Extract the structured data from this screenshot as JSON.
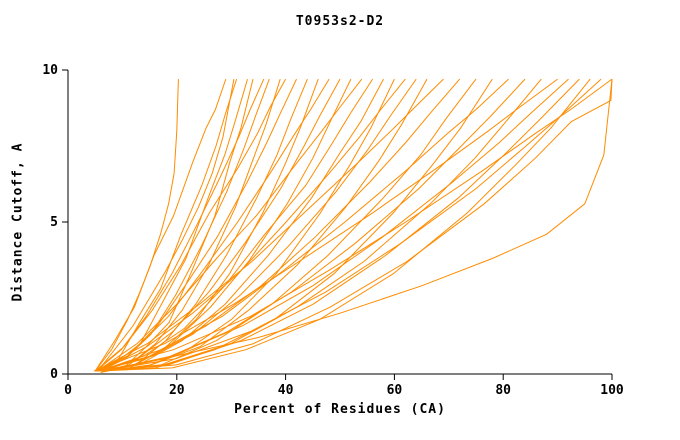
{
  "chart_data": {
    "type": "line",
    "title": "T0953s2-D2",
    "xlabel": "Percent of Residues (CA)",
    "ylabel": "Distance Cutoff, A",
    "xlim": [
      0,
      100
    ],
    "ylim": [
      0,
      10
    ],
    "xticks": [
      0,
      20,
      40,
      60,
      80,
      100
    ],
    "yticks": [
      0,
      5,
      10
    ],
    "grid": false,
    "legend": "none",
    "line_color": "#ff8c00",
    "axis_color": "#000000",
    "curves": [
      [
        [
          5.0,
          0.1
        ],
        [
          8.0,
          0.8
        ],
        [
          11.0,
          1.8
        ],
        [
          13.0,
          2.6
        ],
        [
          15.0,
          3.5
        ],
        [
          17.0,
          4.6
        ],
        [
          18.5,
          5.6
        ],
        [
          19.5,
          6.6
        ],
        [
          20.0,
          8.0
        ],
        [
          20.3,
          9.7
        ]
      ],
      [
        [
          5.0,
          0.1
        ],
        [
          8.6,
          1.1
        ],
        [
          12.2,
          2.2
        ],
        [
          15.8,
          3.9
        ],
        [
          19.4,
          5.2
        ],
        [
          23.0,
          7.0
        ],
        [
          25.4,
          8.1
        ],
        [
          27.1,
          8.7
        ],
        [
          29.0,
          9.7
        ]
      ],
      [
        [
          5.5,
          0.1
        ],
        [
          9.3,
          0.5
        ],
        [
          13.2,
          1.7
        ],
        [
          17.0,
          2.8
        ],
        [
          20.8,
          4.6
        ],
        [
          24.6,
          6.2
        ],
        [
          27.2,
          7.5
        ],
        [
          29.0,
          8.6
        ],
        [
          31.0,
          9.7
        ]
      ],
      [
        [
          4.8,
          0.1
        ],
        [
          9.0,
          0.4
        ],
        [
          13.3,
          1.0
        ],
        [
          17.5,
          2.4
        ],
        [
          21.7,
          3.8
        ],
        [
          26.0,
          5.9
        ],
        [
          28.8,
          7.2
        ],
        [
          30.7,
          8.3
        ],
        [
          33.0,
          9.7
        ]
      ],
      [
        [
          6.0,
          0.1
        ],
        [
          10.2,
          0.2
        ],
        [
          14.4,
          0.9
        ],
        [
          18.6,
          1.7
        ],
        [
          22.8,
          3.4
        ],
        [
          27.0,
          5.2
        ],
        [
          29.8,
          7.0
        ],
        [
          31.8,
          8.1
        ],
        [
          34.0,
          9.7
        ]
      ],
      [
        [
          5.5,
          0.1
        ],
        [
          9.0,
          0.9
        ],
        [
          12.0,
          1.6
        ],
        [
          15.0,
          2.5
        ],
        [
          18.0,
          3.4
        ],
        [
          21.0,
          4.4
        ],
        [
          24.0,
          5.5
        ],
        [
          26.5,
          6.6
        ],
        [
          28.5,
          7.8
        ],
        [
          30.5,
          9.7
        ]
      ],
      [
        [
          5.2,
          0.1
        ],
        [
          9.8,
          0.8
        ],
        [
          14.4,
          1.9
        ],
        [
          19.1,
          3.3
        ],
        [
          23.7,
          4.9
        ],
        [
          28.3,
          6.6
        ],
        [
          31.4,
          7.8
        ],
        [
          33.5,
          8.7
        ],
        [
          36.0,
          9.7
        ]
      ],
      [
        [
          5.8,
          0.1
        ],
        [
          10.5,
          0.5
        ],
        [
          15.2,
          1.3
        ],
        [
          19.8,
          2.6
        ],
        [
          24.5,
          4.2
        ],
        [
          29.2,
          6.0
        ],
        [
          32.3,
          7.4
        ],
        [
          34.5,
          8.5
        ],
        [
          37.0,
          9.7
        ]
      ],
      [
        [
          6.3,
          0.1
        ],
        [
          11.2,
          0.3
        ],
        [
          16.1,
          1.0
        ],
        [
          21.0,
          2.1
        ],
        [
          25.9,
          3.6
        ],
        [
          30.8,
          5.5
        ],
        [
          34.1,
          7.1
        ],
        [
          36.4,
          8.2
        ],
        [
          39.0,
          9.7
        ]
      ],
      [
        [
          5.0,
          0.1
        ],
        [
          10.3,
          0.9
        ],
        [
          15.5,
          2.1
        ],
        [
          20.8,
          3.6
        ],
        [
          26.0,
          5.3
        ],
        [
          31.3,
          6.8
        ],
        [
          34.8,
          7.9
        ],
        [
          37.2,
          8.8
        ],
        [
          40.0,
          9.7
        ]
      ],
      [
        [
          5.5,
          0.1
        ],
        [
          11.0,
          0.6
        ],
        [
          16.5,
          1.6
        ],
        [
          21.9,
          3.0
        ],
        [
          27.4,
          4.5
        ],
        [
          32.9,
          6.3
        ],
        [
          36.5,
          7.6
        ],
        [
          39.1,
          8.6
        ],
        [
          42.0,
          9.7
        ]
      ],
      [
        [
          6.8,
          0.1
        ],
        [
          12.4,
          0.3
        ],
        [
          18.0,
          1.1
        ],
        [
          23.5,
          2.3
        ],
        [
          29.1,
          3.9
        ],
        [
          34.7,
          5.8
        ],
        [
          38.4,
          7.2
        ],
        [
          41.0,
          8.4
        ],
        [
          44.0,
          9.7
        ]
      ],
      [
        [
          5.2,
          0.1
        ],
        [
          11.3,
          0.2
        ],
        [
          17.4,
          0.8
        ],
        [
          23.6,
          1.8
        ],
        [
          29.7,
          3.3
        ],
        [
          35.8,
          5.3
        ],
        [
          39.9,
          6.9
        ],
        [
          42.7,
          8.1
        ],
        [
          46.0,
          9.7
        ]
      ],
      [
        [
          5.9,
          0.1
        ],
        [
          12.2,
          0.8
        ],
        [
          18.5,
          1.9
        ],
        [
          24.8,
          3.4
        ],
        [
          31.2,
          5.0
        ],
        [
          37.5,
          6.7
        ],
        [
          41.7,
          7.9
        ],
        [
          44.6,
          8.7
        ],
        [
          48.0,
          9.7
        ]
      ],
      [
        [
          6.2,
          0.1
        ],
        [
          12.8,
          0.5
        ],
        [
          19.3,
          1.4
        ],
        [
          25.9,
          2.7
        ],
        [
          32.5,
          4.3
        ],
        [
          39.1,
          6.1
        ],
        [
          43.4,
          7.5
        ],
        [
          46.3,
          8.5
        ],
        [
          50.0,
          9.7
        ]
      ],
      [
        [
          5.0,
          0.1
        ],
        [
          12.1,
          0.3
        ],
        [
          19.1,
          1.0
        ],
        [
          26.2,
          2.2
        ],
        [
          33.2,
          3.7
        ],
        [
          40.3,
          5.6
        ],
        [
          45.0,
          7.1
        ],
        [
          48.2,
          8.3
        ],
        [
          52.0,
          9.7
        ]
      ],
      [
        [
          5.4,
          0.1
        ],
        [
          12.7,
          1.0
        ],
        [
          20.0,
          2.3
        ],
        [
          27.3,
          3.8
        ],
        [
          34.6,
          5.2
        ],
        [
          41.9,
          6.9
        ],
        [
          46.7,
          8.0
        ],
        [
          50.1,
          8.8
        ],
        [
          54.0,
          9.7
        ]
      ],
      [
        [
          6.6,
          0.1
        ],
        [
          14.0,
          0.6
        ],
        [
          21.4,
          1.5
        ],
        [
          28.8,
          2.9
        ],
        [
          36.2,
          4.6
        ],
        [
          43.7,
          6.2
        ],
        [
          48.6,
          7.6
        ],
        [
          52.0,
          8.6
        ],
        [
          56.0,
          9.7
        ]
      ],
      [
        [
          5.1,
          0.1
        ],
        [
          13.0,
          0.3
        ],
        [
          21.0,
          1.1
        ],
        [
          28.9,
          2.3
        ],
        [
          36.8,
          3.9
        ],
        [
          44.8,
          5.8
        ],
        [
          50.1,
          7.3
        ],
        [
          53.8,
          8.3
        ],
        [
          58.0,
          9.7
        ]
      ],
      [
        [
          5.7,
          0.1
        ],
        [
          13.8,
          0.2
        ],
        [
          22.0,
          0.8
        ],
        [
          30.1,
          1.8
        ],
        [
          38.3,
          3.3
        ],
        [
          46.4,
          5.3
        ],
        [
          51.9,
          6.9
        ],
        [
          55.7,
          8.1
        ],
        [
          60.0,
          9.7
        ]
      ],
      [
        [
          6.1,
          0.1
        ],
        [
          14.5,
          0.9
        ],
        [
          22.9,
          2.0
        ],
        [
          31.3,
          3.3
        ],
        [
          39.6,
          4.9
        ],
        [
          48.0,
          6.6
        ],
        [
          53.6,
          7.8
        ],
        [
          57.5,
          8.7
        ],
        [
          62.0,
          9.7
        ]
      ],
      [
        [
          5.3,
          0.1
        ],
        [
          14.1,
          0.5
        ],
        [
          22.9,
          1.3
        ],
        [
          31.7,
          2.6
        ],
        [
          40.5,
          4.2
        ],
        [
          49.3,
          6.0
        ],
        [
          55.2,
          7.4
        ],
        [
          59.3,
          8.5
        ],
        [
          64.0,
          9.7
        ]
      ],
      [
        [
          6.4,
          0.1
        ],
        [
          15.3,
          0.3
        ],
        [
          24.3,
          0.9
        ],
        [
          33.2,
          2.1
        ],
        [
          42.2,
          3.6
        ],
        [
          51.1,
          5.5
        ],
        [
          57.1,
          7.0
        ],
        [
          61.3,
          8.2
        ],
        [
          66.0,
          9.7
        ]
      ],
      [
        [
          5.0,
          0.1
        ],
        [
          14.6,
          1.0
        ],
        [
          24.2,
          2.3
        ],
        [
          33.8,
          3.7
        ],
        [
          43.4,
          5.3
        ],
        [
          53.0,
          6.9
        ],
        [
          59.4,
          8.0
        ],
        [
          63.9,
          8.8
        ],
        [
          69.0,
          9.7
        ]
      ],
      [
        [
          5.6,
          0.1
        ],
        [
          15.6,
          0.6
        ],
        [
          25.5,
          1.6
        ],
        [
          35.5,
          2.9
        ],
        [
          45.4,
          4.5
        ],
        [
          55.4,
          6.3
        ],
        [
          62.0,
          7.6
        ],
        [
          66.7,
          8.6
        ],
        [
          72.0,
          9.7
        ]
      ],
      [
        [
          6.9,
          0.1
        ],
        [
          17.1,
          0.3
        ],
        [
          27.3,
          1.1
        ],
        [
          37.5,
          2.3
        ],
        [
          47.8,
          3.9
        ],
        [
          58.0,
          5.8
        ],
        [
          64.8,
          7.2
        ],
        [
          69.5,
          8.4
        ],
        [
          75.0,
          9.7
        ]
      ],
      [
        [
          5.2,
          0.1
        ],
        [
          16.1,
          0.2
        ],
        [
          27.0,
          0.8
        ],
        [
          38.0,
          1.8
        ],
        [
          48.9,
          3.3
        ],
        [
          59.8,
          5.3
        ],
        [
          67.1,
          6.9
        ],
        [
          72.2,
          8.1
        ],
        [
          78.0,
          9.7
        ]
      ],
      [
        [
          5.8,
          0.1
        ],
        [
          17.1,
          0.8
        ],
        [
          28.4,
          1.9
        ],
        [
          39.6,
          3.4
        ],
        [
          50.9,
          5.0
        ],
        [
          62.2,
          6.7
        ],
        [
          69.7,
          7.9
        ],
        [
          75.0,
          8.7
        ],
        [
          81.0,
          9.7
        ]
      ],
      [
        [
          6.0,
          0.1
        ],
        [
          17.7,
          0.5
        ],
        [
          29.4,
          1.4
        ],
        [
          41.1,
          2.7
        ],
        [
          52.8,
          4.3
        ],
        [
          64.5,
          6.1
        ],
        [
          72.3,
          7.5
        ],
        [
          77.8,
          8.5
        ],
        [
          84.0,
          9.7
        ]
      ],
      [
        [
          5.4,
          0.1
        ],
        [
          17.6,
          0.3
        ],
        [
          29.9,
          1.0
        ],
        [
          42.1,
          2.2
        ],
        [
          54.4,
          3.7
        ],
        [
          66.6,
          5.6
        ],
        [
          74.8,
          7.1
        ],
        [
          80.5,
          8.3
        ],
        [
          87.0,
          9.7
        ]
      ],
      [
        [
          5.0,
          0.1
        ],
        [
          17.8,
          1.0
        ],
        [
          30.5,
          2.3
        ],
        [
          43.3,
          3.8
        ],
        [
          56.0,
          5.3
        ],
        [
          68.8,
          6.9
        ],
        [
          77.3,
          8.0
        ],
        [
          83.2,
          8.8
        ],
        [
          90.0,
          9.7
        ]
      ],
      [
        [
          6.5,
          0.1
        ],
        [
          19.3,
          0.6
        ],
        [
          32.2,
          1.6
        ],
        [
          45.0,
          2.9
        ],
        [
          57.8,
          4.5
        ],
        [
          70.6,
          6.3
        ],
        [
          79.2,
          7.6
        ],
        [
          85.2,
          8.6
        ],
        [
          92.0,
          9.7
        ]
      ],
      [
        [
          5.1,
          0.1
        ],
        [
          18.4,
          0.3
        ],
        [
          31.8,
          1.1
        ],
        [
          45.1,
          2.3
        ],
        [
          58.4,
          3.9
        ],
        [
          71.8,
          5.8
        ],
        [
          80.7,
          7.3
        ],
        [
          86.9,
          8.4
        ],
        [
          94.0,
          9.7
        ]
      ],
      [
        [
          5.6,
          0.1
        ],
        [
          19.2,
          0.2
        ],
        [
          32.7,
          0.8
        ],
        [
          46.3,
          1.8
        ],
        [
          59.8,
          3.3
        ],
        [
          73.4,
          5.3
        ],
        [
          82.4,
          6.9
        ],
        [
          88.8,
          8.1
        ],
        [
          96.0,
          9.7
        ]
      ],
      [
        [
          6.0,
          0.1
        ],
        [
          19.8,
          0.5
        ],
        [
          33.6,
          1.4
        ],
        [
          47.4,
          2.7
        ],
        [
          61.2,
          4.3
        ],
        [
          75.0,
          6.1
        ],
        [
          84.2,
          7.5
        ],
        [
          90.6,
          8.5
        ],
        [
          98.0,
          9.7
        ]
      ],
      [
        [
          5.2,
          0.1
        ],
        [
          19.4,
          0.8
        ],
        [
          33.6,
          1.9
        ],
        [
          47.9,
          3.4
        ],
        [
          62.1,
          5.0
        ],
        [
          76.3,
          6.7
        ],
        [
          85.8,
          7.9
        ],
        [
          92.4,
          8.7
        ],
        [
          100.0,
          9.7
        ]
      ],
      [
        [
          5.8,
          0.1
        ],
        [
          19.9,
          0.3
        ],
        [
          34.1,
          1.0
        ],
        [
          48.2,
          2.2
        ],
        [
          62.3,
          3.7
        ],
        [
          76.5,
          5.6
        ],
        [
          85.9,
          7.1
        ],
        [
          92.5,
          8.3
        ],
        [
          99.8,
          9.0
        ],
        [
          100.0,
          9.7
        ]
      ],
      [
        [
          6.0,
          0.05
        ],
        [
          20.0,
          0.6
        ],
        [
          35.0,
          1.2
        ],
        [
          50.0,
          2.0
        ],
        [
          65.0,
          2.9
        ],
        [
          78.0,
          3.8
        ],
        [
          88.0,
          4.6
        ],
        [
          95.0,
          5.6
        ],
        [
          98.5,
          7.2
        ],
        [
          100.0,
          9.7
        ]
      ]
    ]
  }
}
